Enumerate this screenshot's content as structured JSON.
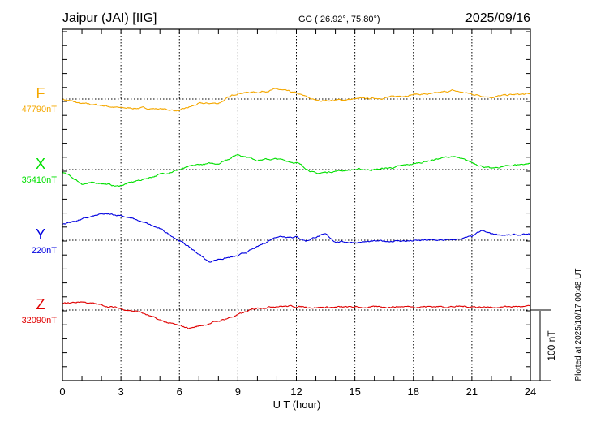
{
  "header": {
    "station": "Jaipur (JAI)  [IIG]",
    "coords": "GG ( 26.92°,  75.80°)",
    "date": "2025/09/16"
  },
  "plotted_note": "Plotted at 2025/10/17 00:48 UT",
  "chart_data": {
    "type": "line",
    "title": "Jaipur (JAI)  [IIG]",
    "xlabel": "U T (hour)",
    "xlim": [
      0,
      24
    ],
    "xticks": [
      "0",
      "3",
      "6",
      "9",
      "12",
      "15",
      "18",
      "21",
      "24"
    ],
    "scale_bar": {
      "label": "100 nT",
      "value_nT": 100
    },
    "series": [
      {
        "name": "F",
        "baseline_label": "47790nT",
        "baseline": 47790,
        "color": "#f5a800",
        "x": [
          0,
          1,
          2,
          3,
          4,
          5,
          6,
          7,
          8,
          9,
          10,
          11,
          12,
          13,
          14,
          15,
          16,
          17,
          18,
          19,
          20,
          21,
          22,
          23,
          24
        ],
        "dev_nT": [
          0,
          -7,
          -9,
          -13,
          -13,
          -14,
          -17,
          -7,
          -6,
          9,
          10,
          14,
          8,
          -2,
          -2,
          0,
          1,
          3,
          7,
          7,
          12,
          7,
          3,
          6,
          7
        ]
      },
      {
        "name": "X",
        "baseline_label": "35410nT",
        "baseline": 35410,
        "color": "#00e000",
        "x": [
          0,
          1,
          2,
          2.8,
          4,
          5,
          6,
          7,
          8,
          9,
          10,
          11,
          12,
          13,
          14,
          15,
          16,
          17,
          18,
          19,
          20,
          21,
          22,
          23,
          24
        ],
        "dev_nT": [
          -3,
          -20,
          -19,
          -24,
          -15,
          -7,
          0,
          7,
          9,
          22,
          14,
          15,
          10,
          -6,
          -2,
          0,
          0,
          3,
          8,
          14,
          19,
          10,
          1,
          6,
          9
        ]
      },
      {
        "name": "Y",
        "baseline_label": "220nT",
        "baseline": 220,
        "color": "#0000e0",
        "x": [
          0,
          1,
          2,
          3,
          4,
          5,
          6,
          7,
          7.5,
          8,
          9,
          10,
          11,
          12,
          12.5,
          13,
          13.5,
          14,
          15,
          16,
          17,
          18,
          19,
          20,
          21,
          21.5,
          22,
          23,
          24
        ],
        "dev_nT": [
          23,
          30,
          37,
          36,
          27,
          16,
          0,
          -20,
          -31,
          -27,
          -23,
          -10,
          6,
          5,
          -1,
          5,
          8,
          -2,
          -3,
          -2,
          -1,
          -1,
          0,
          0,
          5,
          13,
          9,
          7,
          8
        ]
      },
      {
        "name": "Z",
        "baseline_label": "32090nT",
        "baseline": 32090,
        "color": "#e00000",
        "x": [
          0,
          1,
          2,
          3,
          4,
          5,
          6,
          6.5,
          7,
          8,
          9,
          10,
          11,
          12,
          13,
          14,
          15,
          16,
          17,
          18,
          19,
          20,
          21,
          22,
          23,
          24
        ],
        "dev_nT": [
          9,
          12,
          7,
          2,
          -3,
          -15,
          -23,
          -26,
          -23,
          -16,
          -7,
          3,
          6,
          5,
          4,
          4,
          4,
          4,
          5,
          5,
          5,
          5,
          5,
          4,
          5,
          5
        ]
      }
    ]
  }
}
